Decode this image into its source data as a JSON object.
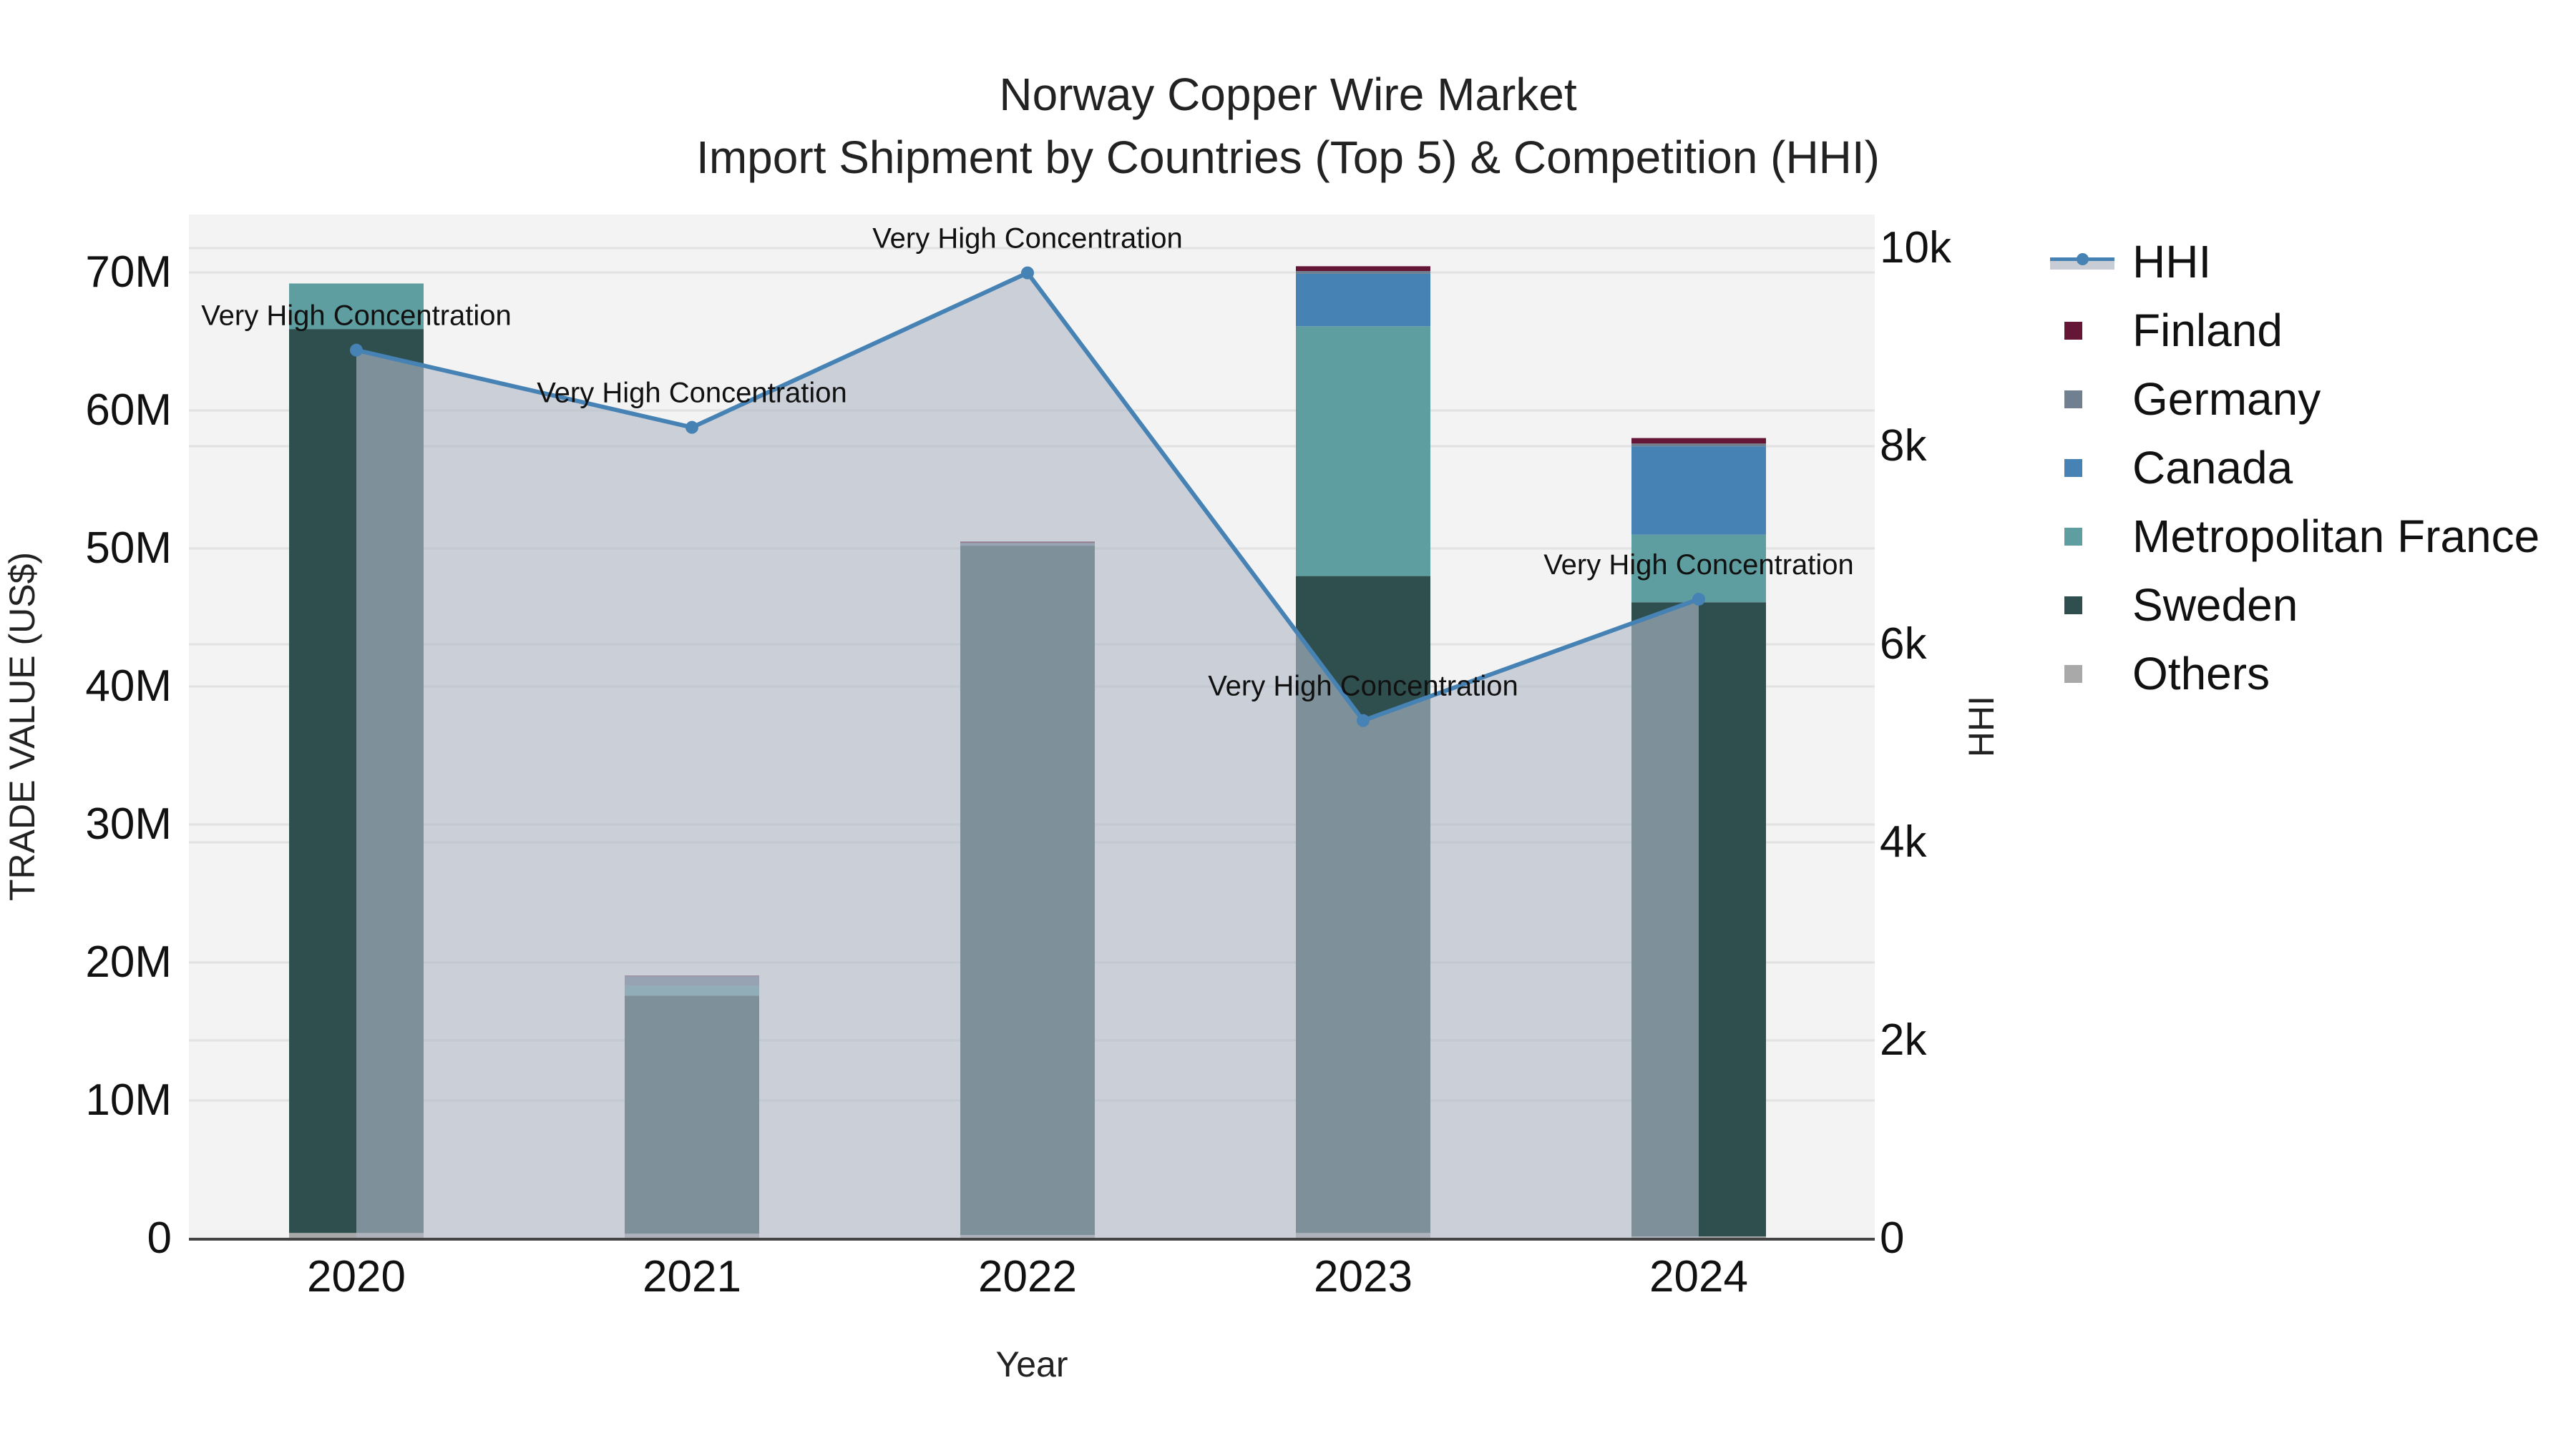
{
  "chart": {
    "title_line1": "Norway Copper Wire Market",
    "title_line2": "Import Shipment by Countries (Top 5) & Competition (HHI)",
    "xlabel": "Year",
    "ylabel_left": "TRADE VALUE (US$)",
    "ylabel_right": "HHI"
  },
  "legend": [
    {
      "name": "HHI",
      "type": "line",
      "color": "#4682b4"
    },
    {
      "name": "Finland",
      "type": "bar",
      "color": "#651536"
    },
    {
      "name": "Germany",
      "type": "bar",
      "color": "#708090"
    },
    {
      "name": "Canada",
      "type": "bar",
      "color": "#4682b4"
    },
    {
      "name": "Metropolitan France",
      "type": "bar",
      "color": "#5f9ea0"
    },
    {
      "name": "Sweden",
      "type": "bar",
      "color": "#2f4f4f"
    },
    {
      "name": "Others",
      "type": "bar",
      "color": "#a9a9a9"
    }
  ],
  "chart_data": {
    "type": "bar",
    "title": "Norway Copper Wire Market — Import Shipment by Countries (Top 5) & Competition (HHI)",
    "xlabel": "Year",
    "ylabel": "TRADE VALUE (US$)",
    "y2label": "HHI",
    "categories": [
      "2020",
      "2021",
      "2022",
      "2023",
      "2024"
    ],
    "stacked": true,
    "ylim": [
      0,
      74000000
    ],
    "y2lim": [
      0,
      10350
    ],
    "yticks": [
      "0",
      "10M",
      "20M",
      "30M",
      "40M",
      "50M",
      "60M",
      "70M"
    ],
    "y2ticks": [
      "0",
      "2k",
      "4k",
      "6k",
      "8k",
      "10k"
    ],
    "legend_position": "right",
    "grid": true,
    "series": [
      {
        "name": "Others",
        "color": "#a9a9a9",
        "values": [
          400000,
          350000,
          250000,
          400000,
          150000
        ]
      },
      {
        "name": "Sweden",
        "color": "#2f4f4f",
        "values": [
          65500000,
          17250000,
          49950000,
          47600000,
          45950000
        ]
      },
      {
        "name": "Metropolitan France",
        "color": "#5f9ea0",
        "values": [
          3300000,
          700000,
          0,
          18100000,
          4900000
        ]
      },
      {
        "name": "Canada",
        "color": "#4682b4",
        "values": [
          0,
          0,
          0,
          3800000,
          6400000
        ]
      },
      {
        "name": "Germany",
        "color": "#708090",
        "values": [
          0,
          700000,
          200000,
          200000,
          200000
        ]
      },
      {
        "name": "Finland",
        "color": "#651536",
        "values": [
          0,
          50000,
          100000,
          350000,
          400000
        ]
      }
    ],
    "line_series": {
      "name": "HHI",
      "axis": "y2",
      "color": "#4682b4",
      "fill": "tozeroy",
      "values": [
        8970,
        8190,
        9750,
        5230,
        6455
      ],
      "annotations": [
        "Very High Concentration",
        "Very High Concentration",
        "Very High Concentration",
        "Very High Concentration",
        "Very High Concentration"
      ]
    }
  }
}
